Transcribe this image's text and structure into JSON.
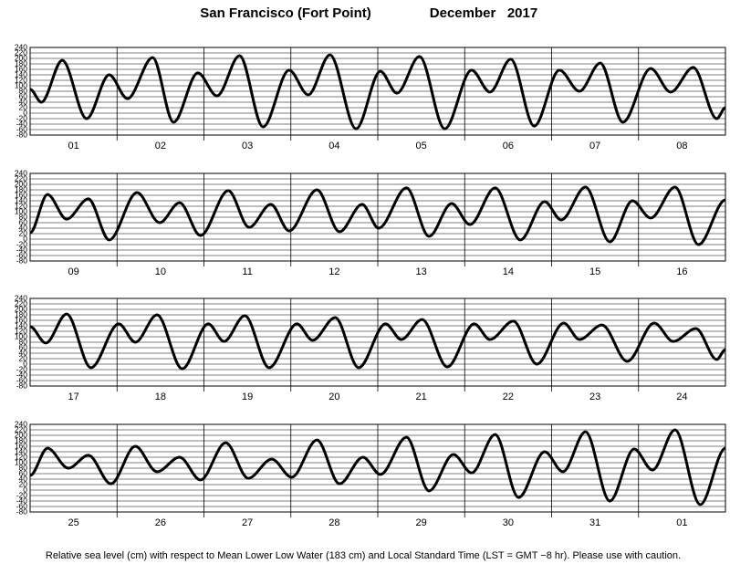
{
  "title": "San Francisco (Fort Point)",
  "period": "December   2017",
  "footnote": "Relative sea level (cm) with respect to Mean Lower Low Water (183 cm) and Local Standard Time (LST = GMT −8 hr). Please use with caution.",
  "chart_data": [
    {
      "type": "line",
      "color": "#000000",
      "grid": true,
      "xlim": [
        0,
        8
      ],
      "ylim": [
        -80,
        240
      ],
      "yticks": [
        -80,
        -60,
        -40,
        -20,
        0,
        20,
        40,
        60,
        80,
        100,
        120,
        140,
        160,
        180,
        200,
        220,
        240
      ],
      "xticks": [
        {
          "value": 0.5,
          "label": "01"
        },
        {
          "value": 1.5,
          "label": "02"
        },
        {
          "value": 2.5,
          "label": "03"
        },
        {
          "value": 3.5,
          "label": "04"
        },
        {
          "value": 4.5,
          "label": "05"
        },
        {
          "value": 5.5,
          "label": "06"
        },
        {
          "value": 6.5,
          "label": "07"
        },
        {
          "value": 7.5,
          "label": "08"
        }
      ],
      "x": [
        0,
        0.13,
        0.37,
        0.65,
        0.91,
        1.12,
        1.41,
        1.65,
        1.93,
        2.15,
        2.41,
        2.68,
        2.98,
        3.2,
        3.45,
        3.75,
        4.03,
        4.22,
        4.48,
        4.77,
        5.08,
        5.29,
        5.53,
        5.8,
        6.09,
        6.32,
        6.56,
        6.82,
        7.14,
        7.37,
        7.63,
        7.9,
        8
      ],
      "values": [
        87,
        40,
        193,
        -20,
        140,
        53,
        203,
        -33,
        147,
        63,
        210,
        -50,
        157,
        67,
        213,
        -57,
        153,
        73,
        207,
        -57,
        157,
        77,
        197,
        -47,
        157,
        80,
        183,
        -33,
        163,
        77,
        167,
        -20,
        20
      ]
    },
    {
      "type": "line",
      "color": "#000000",
      "grid": true,
      "xlim": [
        0,
        8
      ],
      "ylim": [
        -80,
        240
      ],
      "yticks": [
        -80,
        -60,
        -40,
        -20,
        0,
        20,
        40,
        60,
        80,
        100,
        120,
        140,
        160,
        180,
        200,
        220,
        240
      ],
      "xticks": [
        {
          "value": 0.5,
          "label": "09"
        },
        {
          "value": 1.5,
          "label": "10"
        },
        {
          "value": 2.5,
          "label": "11"
        },
        {
          "value": 3.5,
          "label": "12"
        },
        {
          "value": 4.5,
          "label": "13"
        },
        {
          "value": 5.5,
          "label": "14"
        },
        {
          "value": 6.5,
          "label": "15"
        },
        {
          "value": 7.5,
          "label": "16"
        }
      ],
      "x": [
        0,
        0.2,
        0.42,
        0.67,
        0.91,
        1.23,
        1.49,
        1.72,
        1.96,
        2.28,
        2.52,
        2.77,
        2.98,
        3.3,
        3.56,
        3.82,
        4.01,
        4.33,
        4.59,
        4.85,
        5.06,
        5.35,
        5.64,
        5.92,
        6.11,
        6.39,
        6.67,
        6.93,
        7.14,
        7.42,
        7.69,
        8
      ],
      "values": [
        23,
        163,
        73,
        147,
        -3,
        170,
        60,
        133,
        13,
        177,
        43,
        127,
        30,
        180,
        27,
        127,
        40,
        187,
        10,
        130,
        53,
        187,
        -3,
        137,
        70,
        190,
        -10,
        140,
        77,
        190,
        -20,
        143
      ]
    },
    {
      "type": "line",
      "color": "#000000",
      "grid": true,
      "xlim": [
        0,
        8
      ],
      "ylim": [
        -80,
        240
      ],
      "yticks": [
        -80,
        -60,
        -40,
        -20,
        0,
        20,
        40,
        60,
        80,
        100,
        120,
        140,
        160,
        180,
        200,
        220,
        240
      ],
      "xticks": [
        {
          "value": 0.5,
          "label": "17"
        },
        {
          "value": 1.5,
          "label": "18"
        },
        {
          "value": 2.5,
          "label": "19"
        },
        {
          "value": 3.5,
          "label": "20"
        },
        {
          "value": 4.5,
          "label": "21"
        },
        {
          "value": 5.5,
          "label": "22"
        },
        {
          "value": 6.5,
          "label": "23"
        },
        {
          "value": 7.5,
          "label": "24"
        }
      ],
      "x": [
        0,
        0.18,
        0.42,
        0.7,
        1.02,
        1.21,
        1.46,
        1.75,
        2.05,
        2.23,
        2.47,
        2.75,
        3.07,
        3.25,
        3.51,
        3.78,
        4.09,
        4.27,
        4.51,
        4.8,
        5.11,
        5.29,
        5.56,
        5.83,
        6.14,
        6.32,
        6.58,
        6.87,
        7.18,
        7.4,
        7.66,
        7.9,
        8
      ],
      "values": [
        137,
        77,
        183,
        -13,
        147,
        80,
        180,
        -17,
        147,
        83,
        177,
        -13,
        147,
        87,
        170,
        -13,
        147,
        90,
        163,
        -10,
        147,
        90,
        157,
        0,
        150,
        90,
        143,
        10,
        150,
        83,
        130,
        17,
        53
      ]
    },
    {
      "type": "line",
      "color": "#000000",
      "grid": true,
      "xlim": [
        0,
        8
      ],
      "ylim": [
        -80,
        240
      ],
      "yticks": [
        -80,
        -60,
        -40,
        -20,
        0,
        20,
        40,
        60,
        80,
        100,
        120,
        140,
        160,
        180,
        200,
        220,
        240
      ],
      "xticks": [
        {
          "value": 0.5,
          "label": "25"
        },
        {
          "value": 1.5,
          "label": "26"
        },
        {
          "value": 2.5,
          "label": "27"
        },
        {
          "value": 3.5,
          "label": "28"
        },
        {
          "value": 4.5,
          "label": "29"
        },
        {
          "value": 5.5,
          "label": "30"
        },
        {
          "value": 6.5,
          "label": "31"
        },
        {
          "value": 7.5,
          "label": "01"
        }
      ],
      "x": [
        0,
        0.2,
        0.44,
        0.67,
        0.93,
        1.21,
        1.46,
        1.72,
        1.96,
        2.25,
        2.51,
        2.78,
        3.01,
        3.3,
        3.56,
        3.83,
        4.03,
        4.33,
        4.59,
        4.87,
        5.08,
        5.35,
        5.62,
        5.92,
        6.13,
        6.39,
        6.67,
        6.95,
        7.16,
        7.42,
        7.71,
        8
      ],
      "values": [
        53,
        153,
        80,
        127,
        23,
        160,
        67,
        120,
        37,
        173,
        43,
        113,
        47,
        183,
        23,
        120,
        57,
        193,
        -3,
        130,
        63,
        203,
        -27,
        140,
        67,
        213,
        -40,
        150,
        73,
        220,
        -53,
        153
      ]
    }
  ]
}
